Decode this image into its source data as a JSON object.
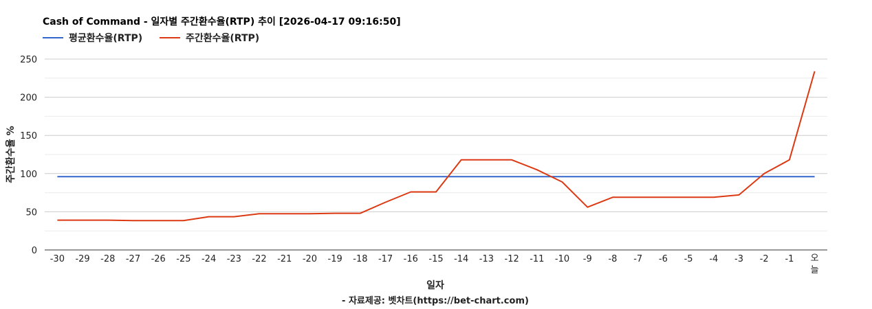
{
  "chart_data": {
    "type": "line",
    "title": "Cash of Command - 일자별 주간환수율(RTP) 추이 [2026-04-17 09:16:50]",
    "xlabel": "일자",
    "ylabel": "주간환수율 %",
    "footer": "- 자료제공: 벳차트(https://bet-chart.com)",
    "categories": [
      "-30",
      "-29",
      "-28",
      "-27",
      "-26",
      "-25",
      "-24",
      "-23",
      "-22",
      "-21",
      "-20",
      "-19",
      "-18",
      "-17",
      "-16",
      "-15",
      "-14",
      "-13",
      "-12",
      "-11",
      "-10",
      "-9",
      "-8",
      "-7",
      "-6",
      "-5",
      "-4",
      "-3",
      "-2",
      "-1",
      "오늘"
    ],
    "yticks": [
      "0",
      "50",
      "100",
      "150",
      "200",
      "250"
    ],
    "ylim": [
      0,
      250
    ],
    "grid": true,
    "legend_position": "top-left",
    "series": [
      {
        "name": "평균환수율(RTP)",
        "color": "#3366cc",
        "values": [
          96,
          96,
          96,
          96,
          96,
          96,
          96,
          96,
          96,
          96,
          96,
          96,
          96,
          96,
          96,
          96,
          96,
          96,
          96,
          96,
          96,
          96,
          96,
          96,
          96,
          96,
          96,
          96,
          96,
          96,
          96
        ]
      },
      {
        "name": "주간환수율(RTP)",
        "color": "#dc3912",
        "values": [
          39,
          39,
          39,
          38.5,
          38.5,
          38.5,
          43.5,
          43.5,
          47.5,
          47.5,
          47.5,
          48,
          48,
          62.5,
          76,
          76,
          118,
          118,
          118,
          105,
          89,
          56,
          69,
          69,
          69,
          69,
          69,
          72,
          100,
          118,
          234
        ]
      }
    ]
  }
}
